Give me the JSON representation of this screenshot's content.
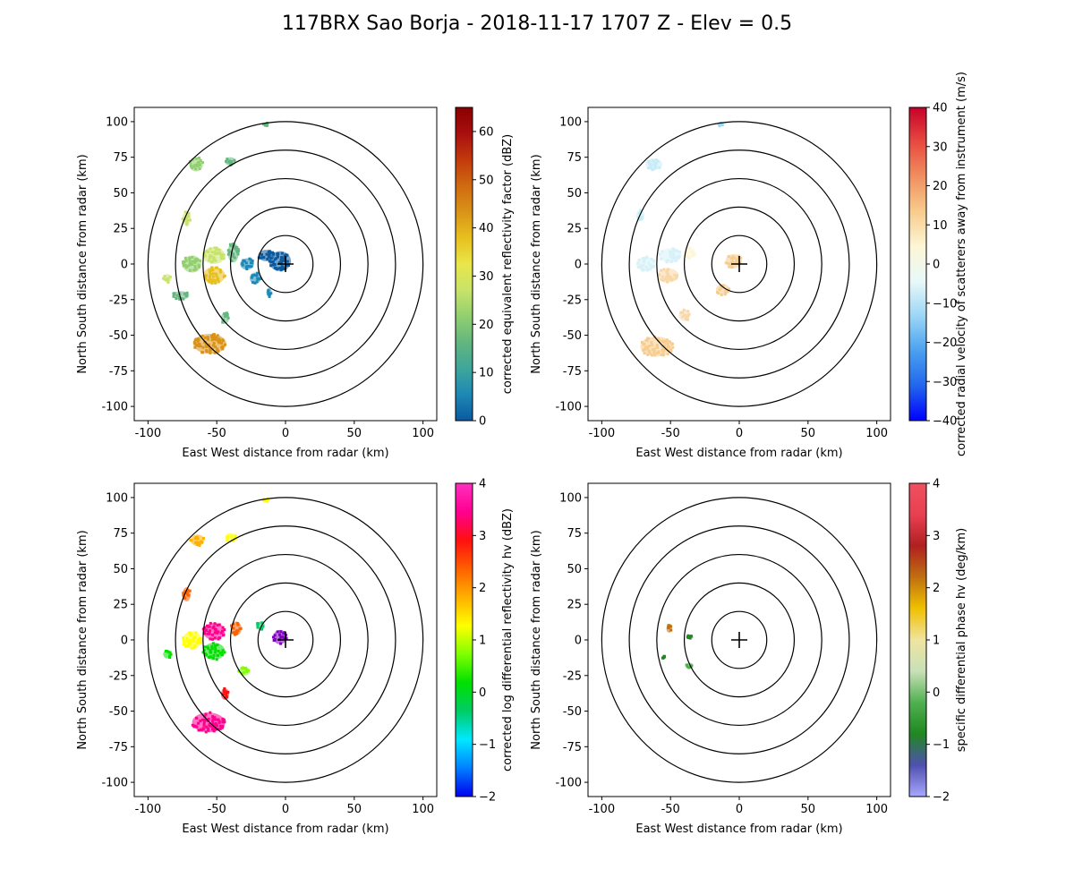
{
  "figure": {
    "title": "117BRX Sao Borja - 2018-11-17 1707 Z -  Elev = 0.5"
  },
  "chart_data": [
    {
      "type": "heatmap",
      "field": "reflectivity",
      "xlabel": "East West distance from radar (km)",
      "ylabel": "North South distance from radar (km)",
      "xlim": [
        -110,
        110
      ],
      "ylim": [
        -110,
        110
      ],
      "xticks": [
        -100,
        -50,
        0,
        50,
        100
      ],
      "yticks": [
        -100,
        -75,
        -50,
        -25,
        0,
        25,
        50,
        75,
        100
      ],
      "range_rings_km": [
        20,
        40,
        60,
        80,
        100
      ],
      "colorbar": {
        "label": "corrected equivalent reflectivity factor (dBZ)",
        "range": [
          0,
          65
        ],
        "ticks": [
          0,
          10,
          20,
          30,
          40,
          50,
          60
        ],
        "colors": [
          "#0a5aa0",
          "#1e88b4",
          "#3fa69a",
          "#62b67e",
          "#92cf6f",
          "#c8e36a",
          "#e9e64a",
          "#e8c01e",
          "#d99318",
          "#cf6a10",
          "#c23a0c",
          "#a80f0f",
          "#8a0000"
        ]
      },
      "echoes": [
        {
          "x": -4,
          "y": 2,
          "w": 16,
          "h": 14,
          "color": "#0a5aa0"
        },
        {
          "x": -14,
          "y": 6,
          "w": 12,
          "h": 8,
          "color": "#0a5aa0"
        },
        {
          "x": -22,
          "y": -10,
          "w": 8,
          "h": 8,
          "color": "#1e88b4"
        },
        {
          "x": -28,
          "y": 0,
          "w": 10,
          "h": 8,
          "color": "#1e88b4"
        },
        {
          "x": -38,
          "y": 8,
          "w": 8,
          "h": 14,
          "color": "#62b67e"
        },
        {
          "x": -52,
          "y": 6,
          "w": 16,
          "h": 12,
          "color": "#c8e36a"
        },
        {
          "x": -52,
          "y": -8,
          "w": 16,
          "h": 12,
          "color": "#e8c01e"
        },
        {
          "x": -68,
          "y": 0,
          "w": 14,
          "h": 12,
          "color": "#92cf6f"
        },
        {
          "x": -76,
          "y": -22,
          "w": 12,
          "h": 6,
          "color": "#62b67e"
        },
        {
          "x": -55,
          "y": -56,
          "w": 24,
          "h": 14,
          "color": "#d99318"
        },
        {
          "x": -65,
          "y": 70,
          "w": 10,
          "h": 10,
          "color": "#92cf6f"
        },
        {
          "x": -40,
          "y": 72,
          "w": 8,
          "h": 6,
          "color": "#62b67e"
        },
        {
          "x": -72,
          "y": 32,
          "w": 6,
          "h": 10,
          "color": "#c8e36a"
        },
        {
          "x": -44,
          "y": -38,
          "w": 6,
          "h": 8,
          "color": "#62b67e"
        },
        {
          "x": -12,
          "y": -20,
          "w": 4,
          "h": 6,
          "color": "#1e88b4"
        },
        {
          "x": -86,
          "y": -10,
          "w": 6,
          "h": 6,
          "color": "#c8e36a"
        },
        {
          "x": -14,
          "y": 98,
          "w": 4,
          "h": 3,
          "color": "#62b67e"
        }
      ]
    },
    {
      "type": "heatmap",
      "field": "velocity",
      "xlabel": "East West distance from radar (km)",
      "ylabel": "North South distance from radar (km)",
      "xlim": [
        -110,
        110
      ],
      "ylim": [
        -110,
        110
      ],
      "xticks": [
        -100,
        -50,
        0,
        50,
        100
      ],
      "yticks": [
        -100,
        -75,
        -50,
        -25,
        0,
        25,
        50,
        75,
        100
      ],
      "range_rings_km": [
        20,
        40,
        60,
        80,
        100
      ],
      "colorbar": {
        "label": "corrected radial velocity of scatterers away from instrument (m/s)",
        "range": [
          -40,
          40
        ],
        "ticks": [
          -40,
          -30,
          -20,
          -10,
          0,
          10,
          20,
          30,
          40
        ],
        "colors": [
          "#0000ff",
          "#2266ee",
          "#4aa0f0",
          "#9ad6f5",
          "#e8f8fa",
          "#fdf6d6",
          "#f8cc8c",
          "#f09060",
          "#e84a40",
          "#c8002a"
        ]
      },
      "echoes": [
        {
          "x": -4,
          "y": 2,
          "w": 12,
          "h": 10,
          "color": "#f8cc8c"
        },
        {
          "x": -12,
          "y": -18,
          "w": 10,
          "h": 8,
          "color": "#f8cc8c"
        },
        {
          "x": -36,
          "y": 8,
          "w": 8,
          "h": 8,
          "color": "#fdf6d6"
        },
        {
          "x": -50,
          "y": 6,
          "w": 16,
          "h": 10,
          "color": "#d6f2f8"
        },
        {
          "x": -52,
          "y": -8,
          "w": 16,
          "h": 10,
          "color": "#f8d8a8"
        },
        {
          "x": -68,
          "y": 0,
          "w": 14,
          "h": 10,
          "color": "#d6f2f8"
        },
        {
          "x": -60,
          "y": -58,
          "w": 24,
          "h": 14,
          "color": "#f8cc8c"
        },
        {
          "x": -62,
          "y": 70,
          "w": 12,
          "h": 8,
          "color": "#c6ecf8"
        },
        {
          "x": -72,
          "y": 34,
          "w": 6,
          "h": 8,
          "color": "#c6ecf8"
        },
        {
          "x": -40,
          "y": -36,
          "w": 8,
          "h": 8,
          "color": "#f8d8a8"
        },
        {
          "x": -14,
          "y": 98,
          "w": 4,
          "h": 3,
          "color": "#9ad6f5"
        }
      ]
    },
    {
      "type": "heatmap",
      "field": "differential_reflectivity",
      "xlabel": "East West distance from radar (km)",
      "ylabel": "North South distance from radar (km)",
      "xlim": [
        -110,
        110
      ],
      "ylim": [
        -110,
        110
      ],
      "xticks": [
        -100,
        -50,
        0,
        50,
        100
      ],
      "yticks": [
        -100,
        -75,
        -50,
        -25,
        0,
        25,
        50,
        75,
        100
      ],
      "range_rings_km": [
        20,
        40,
        60,
        80,
        100
      ],
      "colorbar": {
        "label": "corrected log differential reflectivity hv (dBZ)",
        "range": [
          -2,
          4
        ],
        "ticks": [
          -2,
          -1,
          0,
          1,
          2,
          3,
          4
        ],
        "colors": [
          "#0000ee",
          "#0080ff",
          "#00e8ff",
          "#00cc66",
          "#00e000",
          "#80ff00",
          "#ffff00",
          "#ffb000",
          "#ff6000",
          "#ff1010",
          "#ff0090",
          "#ff30c0"
        ]
      },
      "echoes": [
        {
          "x": -4,
          "y": 2,
          "w": 10,
          "h": 10,
          "color": "#8000c0"
        },
        {
          "x": -18,
          "y": 10,
          "w": 6,
          "h": 6,
          "color": "#00cc66"
        },
        {
          "x": -36,
          "y": 8,
          "w": 8,
          "h": 10,
          "color": "#ff6000"
        },
        {
          "x": -52,
          "y": 6,
          "w": 16,
          "h": 12,
          "color": "#ff0090"
        },
        {
          "x": -52,
          "y": -8,
          "w": 16,
          "h": 12,
          "color": "#00e000"
        },
        {
          "x": -68,
          "y": 0,
          "w": 14,
          "h": 12,
          "color": "#ffff00"
        },
        {
          "x": -56,
          "y": -58,
          "w": 24,
          "h": 14,
          "color": "#ff0090"
        },
        {
          "x": -64,
          "y": 70,
          "w": 10,
          "h": 8,
          "color": "#ffb000"
        },
        {
          "x": -40,
          "y": 72,
          "w": 8,
          "h": 6,
          "color": "#ffff00"
        },
        {
          "x": -72,
          "y": 32,
          "w": 6,
          "h": 10,
          "color": "#ff6000"
        },
        {
          "x": -44,
          "y": -38,
          "w": 6,
          "h": 8,
          "color": "#ff1010"
        },
        {
          "x": -86,
          "y": -10,
          "w": 6,
          "h": 6,
          "color": "#00e000"
        },
        {
          "x": -30,
          "y": -22,
          "w": 8,
          "h": 6,
          "color": "#80ff00"
        },
        {
          "x": -14,
          "y": 98,
          "w": 4,
          "h": 3,
          "color": "#ffff00"
        }
      ]
    },
    {
      "type": "heatmap",
      "field": "specific_differential_phase",
      "xlabel": "East West distance from radar (km)",
      "ylabel": "North South distance from radar (km)",
      "xlim": [
        -110,
        110
      ],
      "ylim": [
        -110,
        110
      ],
      "xticks": [
        -100,
        -50,
        0,
        50,
        100
      ],
      "yticks": [
        -100,
        -75,
        -50,
        -25,
        0,
        25,
        50,
        75,
        100
      ],
      "range_rings_km": [
        20,
        40,
        60,
        80,
        100
      ],
      "colorbar": {
        "label": "specific differential phase hv (deg/km)",
        "range": [
          -2,
          4
        ],
        "ticks": [
          -2,
          -1,
          0,
          1,
          2,
          3,
          4
        ],
        "colors": [
          "#a8a8ff",
          "#5050b0",
          "#208820",
          "#50b050",
          "#c8e0b8",
          "#f0e4a0",
          "#f0c000",
          "#c07010",
          "#b02020",
          "#e84050",
          "#f05060"
        ]
      },
      "echoes": [
        {
          "x": -51,
          "y": 8,
          "w": 4,
          "h": 6,
          "color": "#c07010"
        },
        {
          "x": -36,
          "y": 2,
          "w": 5,
          "h": 3,
          "color": "#208820"
        },
        {
          "x": -36,
          "y": -18,
          "w": 5,
          "h": 4,
          "color": "#50b050"
        },
        {
          "x": -55,
          "y": -12,
          "w": 2,
          "h": 2,
          "color": "#208820"
        }
      ]
    }
  ]
}
